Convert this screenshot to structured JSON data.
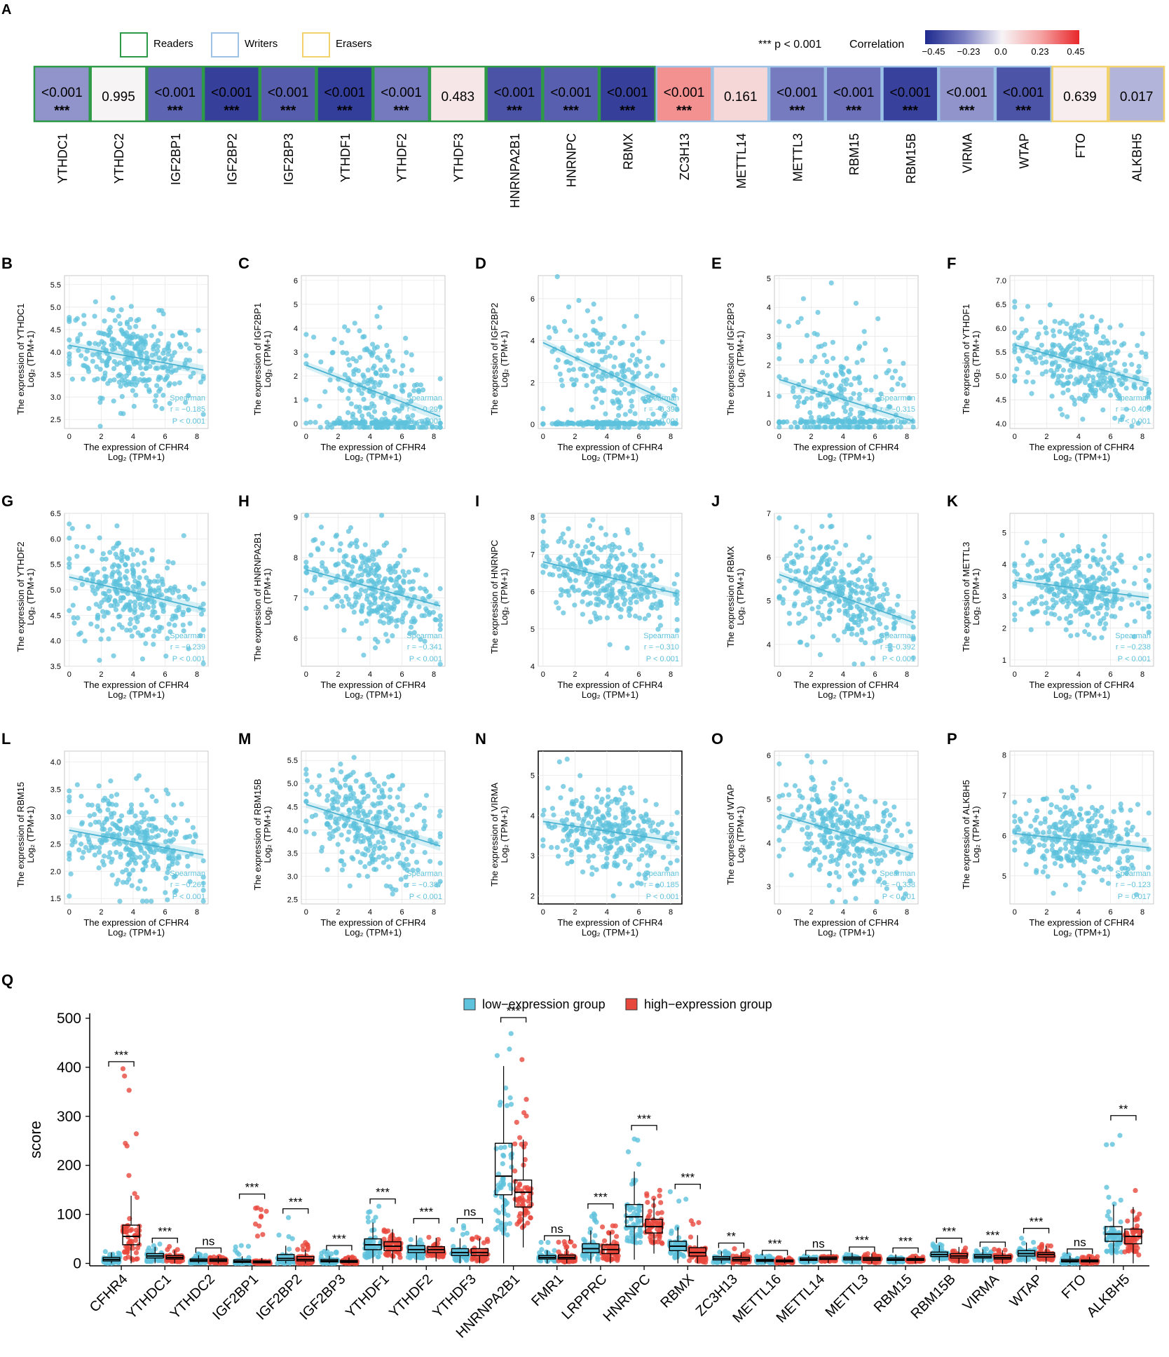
{
  "panel_a": {
    "letter": "A",
    "legend_items": [
      {
        "label": "Readers",
        "color": "#2e9a47"
      },
      {
        "label": "Writers",
        "color": "#9cc3e6"
      },
      {
        "label": "Erasers",
        "color": "#f2d26a"
      }
    ],
    "sig_note": "*** p < 0.001",
    "correlation_label": "Correlation",
    "colorbar_ticks": [
      "−0.45",
      "−0.23",
      "0.0",
      "0.23",
      "0.45"
    ],
    "colorbar_colors": [
      "#1e2a8e",
      "#7b7fc2",
      "#f7f4f6",
      "#f5a3a3",
      "#e8262a"
    ],
    "cells": [
      {
        "gene": "YTHDC1",
        "p": "<0.001",
        "stars": "***",
        "r": -0.185,
        "group": "Readers"
      },
      {
        "gene": "YTHDC2",
        "p": "0.995",
        "stars": "",
        "r": 0.0,
        "group": "Readers"
      },
      {
        "gene": "IGF2BP1",
        "p": "<0.001",
        "stars": "***",
        "r": -0.297,
        "group": "Readers"
      },
      {
        "gene": "IGF2BP2",
        "p": "<0.001",
        "stars": "***",
        "r": -0.393,
        "group": "Readers"
      },
      {
        "gene": "IGF2BP3",
        "p": "<0.001",
        "stars": "***",
        "r": -0.315,
        "group": "Readers"
      },
      {
        "gene": "YTHDF1",
        "p": "<0.001",
        "stars": "***",
        "r": -0.4,
        "group": "Readers"
      },
      {
        "gene": "YTHDF2",
        "p": "<0.001",
        "stars": "***",
        "r": -0.239,
        "group": "Readers"
      },
      {
        "gene": "YTHDF3",
        "p": "0.483",
        "stars": "",
        "r": 0.04,
        "group": "Readers"
      },
      {
        "gene": "HNRNPA2B1",
        "p": "<0.001",
        "stars": "***",
        "r": -0.341,
        "group": "Readers"
      },
      {
        "gene": "HNRNPC",
        "p": "<0.001",
        "stars": "***",
        "r": -0.31,
        "group": "Readers"
      },
      {
        "gene": "RBMX",
        "p": "<0.001",
        "stars": "***",
        "r": -0.392,
        "group": "Readers"
      },
      {
        "gene": "ZC3H13",
        "p": "<0.001",
        "stars": "***",
        "r": 0.26,
        "group": "Writers"
      },
      {
        "gene": "METTL14",
        "p": "0.161",
        "stars": "",
        "r": 0.08,
        "group": "Writers"
      },
      {
        "gene": "METTL3",
        "p": "<0.001",
        "stars": "***",
        "r": -0.238,
        "group": "Writers"
      },
      {
        "gene": "RBM15",
        "p": "<0.001",
        "stars": "***",
        "r": -0.261,
        "group": "Writers"
      },
      {
        "gene": "RBM15B",
        "p": "<0.001",
        "stars": "***",
        "r": -0.387,
        "group": "Writers"
      },
      {
        "gene": "VIRMA",
        "p": "<0.001",
        "stars": "***",
        "r": -0.185,
        "group": "Writers"
      },
      {
        "gene": "WTAP",
        "p": "<0.001",
        "stars": "***",
        "r": -0.338,
        "group": "Writers"
      },
      {
        "gene": "FTO",
        "p": "0.639",
        "stars": "",
        "r": 0.02,
        "group": "Erasers"
      },
      {
        "gene": "ALKBH5",
        "p": "0.017",
        "stars": "",
        "r": -0.123,
        "group": "Erasers"
      }
    ]
  },
  "scatter_common": {
    "xlabel": "The expression of CFHR4",
    "xlabel_unit": "Log₂ (TPM+1)",
    "ylabel_prefix": "The expression of ",
    "ylabel_unit": "Log₂ (TPM+1)",
    "method": "Spearman",
    "x_ticks": [
      "0",
      "2",
      "4",
      "6",
      "8"
    ]
  },
  "chart_data": [
    {
      "type": "scatter",
      "letter": "B",
      "gene": "YTHDC1",
      "r_text": "r = −0.185",
      "p_text": "P < 0.001",
      "ylim": [
        2.3,
        5.7
      ],
      "yticks": [
        "2.5",
        "3.0",
        "3.5",
        "4.0",
        "4.5",
        "5.0",
        "5.5"
      ],
      "ytick_vals": [
        2.5,
        3.0,
        3.5,
        4.0,
        4.5,
        5.0,
        5.5
      ],
      "fit": [
        4.15,
        3.6
      ],
      "ymean": 3.9,
      "ysd": 0.55,
      "zero_cluster": false
    },
    {
      "type": "scatter",
      "letter": "C",
      "gene": "IGF2BP1",
      "r_text": "r = −0.297",
      "p_text": "P < 0.001",
      "ylim": [
        -0.2,
        6.2
      ],
      "yticks": [
        "0",
        "1",
        "2",
        "3",
        "4",
        "5",
        "6"
      ],
      "ytick_vals": [
        0,
        1,
        2,
        3,
        4,
        5,
        6
      ],
      "fit": [
        2.45,
        0.3
      ],
      "ymean": 2.0,
      "ysd": 1.6,
      "zero_cluster": true
    },
    {
      "type": "scatter",
      "letter": "D",
      "gene": "IGF2BP2",
      "r_text": "r = −0.393",
      "p_text": "P < 0.001",
      "ylim": [
        -0.2,
        7.1
      ],
      "yticks": [
        "0",
        "2",
        "4",
        "6"
      ],
      "ytick_vals": [
        0,
        2,
        4,
        6
      ],
      "fit": [
        3.9,
        0.9
      ],
      "ymean": 2.8,
      "ysd": 1.8,
      "zero_cluster": true
    },
    {
      "type": "scatter",
      "letter": "E",
      "gene": "IGF2BP3",
      "r_text": "r = −0.315",
      "p_text": "P < 0.001",
      "ylim": [
        -0.2,
        5.1
      ],
      "yticks": [
        "0",
        "1",
        "2",
        "3",
        "4",
        "5"
      ],
      "ytick_vals": [
        0,
        1,
        2,
        3,
        4,
        5
      ],
      "fit": [
        1.5,
        0.05
      ],
      "ymean": 1.2,
      "ysd": 1.3,
      "zero_cluster": true
    },
    {
      "type": "scatter",
      "letter": "F",
      "gene": "YTHDF1",
      "r_text": "r = −0.400",
      "p_text": "P < 0.001",
      "ylim": [
        3.9,
        7.1
      ],
      "yticks": [
        "4.0",
        "4.5",
        "5.0",
        "5.5",
        "6.0",
        "6.5",
        "7.0"
      ],
      "ytick_vals": [
        4.0,
        4.5,
        5.0,
        5.5,
        6.0,
        6.5,
        7.0
      ],
      "fit": [
        5.65,
        4.85
      ],
      "ymean": 5.35,
      "ysd": 0.55,
      "zero_cluster": false
    },
    {
      "type": "scatter",
      "letter": "G",
      "gene": "YTHDF2",
      "r_text": "r = −0.239",
      "p_text": "P < 0.001",
      "ylim": [
        3.5,
        6.5
      ],
      "yticks": [
        "3.5",
        "4.0",
        "4.5",
        "5.0",
        "5.5",
        "6.0",
        "6.5"
      ],
      "ytick_vals": [
        3.5,
        4.0,
        4.5,
        5.0,
        5.5,
        6.0,
        6.5
      ],
      "fit": [
        5.25,
        4.62
      ],
      "ymean": 4.95,
      "ysd": 0.55,
      "zero_cluster": false
    },
    {
      "type": "scatter",
      "letter": "H",
      "gene": "HNRNPA2B1",
      "r_text": "r = −0.341",
      "p_text": "P < 0.001",
      "ylim": [
        5.3,
        9.1
      ],
      "yticks": [
        "6",
        "7",
        "8",
        "9"
      ],
      "ytick_vals": [
        6,
        7,
        8,
        9
      ],
      "fit": [
        7.7,
        6.8
      ],
      "ymean": 7.3,
      "ysd": 0.65,
      "zero_cluster": false
    },
    {
      "type": "scatter",
      "letter": "I",
      "gene": "HNRNPC",
      "r_text": "r = −0.310",
      "p_text": "P < 0.001",
      "ylim": [
        4.0,
        8.1
      ],
      "yticks": [
        "4",
        "5",
        "6",
        "7",
        "8"
      ],
      "ytick_vals": [
        4,
        5,
        6,
        7,
        8
      ],
      "fit": [
        6.8,
        5.95
      ],
      "ymean": 6.4,
      "ysd": 0.65,
      "zero_cluster": false
    },
    {
      "type": "scatter",
      "letter": "J",
      "gene": "RBMX",
      "r_text": "r = −0.392",
      "p_text": "P < 0.001",
      "ylim": [
        3.5,
        7.0
      ],
      "yticks": [
        "4",
        "5",
        "6",
        "7"
      ],
      "ytick_vals": [
        4,
        5,
        6,
        7
      ],
      "fit": [
        5.6,
        4.5
      ],
      "ymean": 5.05,
      "ysd": 0.65,
      "zero_cluster": false
    },
    {
      "type": "scatter",
      "letter": "K",
      "gene": "METTL3",
      "r_text": "r = −0.238",
      "p_text": "P < 0.001",
      "ylim": [
        0.8,
        5.6
      ],
      "yticks": [
        "1",
        "2",
        "3",
        "4",
        "5"
      ],
      "ytick_vals": [
        1,
        2,
        3,
        4,
        5
      ],
      "fit": [
        3.5,
        2.95
      ],
      "ymean": 3.2,
      "ysd": 0.7,
      "zero_cluster": false
    },
    {
      "type": "scatter",
      "letter": "L",
      "gene": "RBM15",
      "r_text": "r = −0.261",
      "p_text": "P < 0.001",
      "ylim": [
        1.4,
        4.2
      ],
      "yticks": [
        "1.5",
        "2.0",
        "2.5",
        "3.0",
        "3.5",
        "4.0"
      ],
      "ytick_vals": [
        1.5,
        2.0,
        2.5,
        3.0,
        3.5,
        4.0
      ],
      "fit": [
        2.75,
        2.3
      ],
      "ymean": 2.55,
      "ysd": 0.5,
      "zero_cluster": false
    },
    {
      "type": "scatter",
      "letter": "M",
      "gene": "RBM15B",
      "r_text": "r = −0.387",
      "p_text": "P < 0.001",
      "ylim": [
        2.4,
        5.7
      ],
      "yticks": [
        "2.5",
        "3.0",
        "3.5",
        "4.0",
        "4.5",
        "5.0",
        "5.5"
      ],
      "ytick_vals": [
        2.5,
        3.0,
        3.5,
        4.0,
        4.5,
        5.0,
        5.5
      ],
      "fit": [
        4.55,
        3.65
      ],
      "ymean": 4.1,
      "ysd": 0.6,
      "zero_cluster": false
    },
    {
      "type": "scatter",
      "letter": "N",
      "gene": "VIRMA",
      "r_text": "r = −0.185",
      "p_text": "P < 0.001",
      "ylim": [
        1.8,
        5.6
      ],
      "yticks": [
        "2",
        "3",
        "4",
        "5"
      ],
      "ytick_vals": [
        2,
        3,
        4,
        5
      ],
      "fit": [
        3.85,
        3.35
      ],
      "ymean": 3.6,
      "ysd": 0.6,
      "zero_cluster": false
    },
    {
      "type": "scatter",
      "letter": "O",
      "gene": "WTAP",
      "r_text": "r = −0.338",
      "p_text": "P < 0.001",
      "ylim": [
        2.6,
        6.1
      ],
      "yticks": [
        "3",
        "4",
        "5",
        "6"
      ],
      "ytick_vals": [
        3,
        4,
        5,
        6
      ],
      "fit": [
        4.65,
        3.75
      ],
      "ymean": 4.2,
      "ysd": 0.6,
      "zero_cluster": false
    },
    {
      "type": "scatter",
      "letter": "P",
      "gene": "ALKBH5",
      "r_text": "r = −0.123",
      "p_text": "P = 0.017",
      "ylim": [
        4.3,
        8.1
      ],
      "yticks": [
        "5",
        "6",
        "7",
        "8"
      ],
      "ytick_vals": [
        5,
        6,
        7,
        8
      ],
      "fit": [
        6.05,
        5.7
      ],
      "ymean": 5.9,
      "ysd": 0.55,
      "zero_cluster": false
    },
    {
      "type": "box",
      "letter": "Q",
      "ylabel": "score",
      "ylim": [
        -5,
        510
      ],
      "yticks": [
        "0",
        "100",
        "200",
        "300",
        "400",
        "500"
      ],
      "ytick_vals": [
        0,
        100,
        200,
        300,
        400,
        500
      ],
      "legend": [
        {
          "label": "low−expression group",
          "color": "#5ec2dc"
        },
        {
          "label": "high−expression group",
          "color": "#e8473c"
        }
      ],
      "categories": [
        "CFHR4",
        "YTHDC1",
        "YTHDC2",
        "IGF2BP1",
        "IGF2BP2",
        "IGF2BP3",
        "YTHDF1",
        "YTHDF2",
        "YTHDF3",
        "HNRNPA2B1",
        "FMR1",
        "LRPPRC",
        "HNRNPC",
        "RBMX",
        "ZC3H13",
        "METTL16",
        "METTL14",
        "METTL3",
        "RBM15",
        "RBM15B",
        "VIRMA",
        "WTAP",
        "FTO",
        "ALKBH5"
      ],
      "significance": [
        "***",
        "***",
        "ns",
        "***",
        "***",
        "***",
        "***",
        "***",
        "ns",
        "***",
        "ns",
        "***",
        "***",
        "***",
        "**",
        "***",
        "ns",
        "***",
        "***",
        "***",
        "***",
        "***",
        "ns",
        "**"
      ],
      "series": [
        {
          "name": "low−expression group",
          "medians": [
            8,
            15,
            6,
            4,
            10,
            5,
            38,
            28,
            22,
            178,
            12,
            30,
            95,
            35,
            10,
            6,
            8,
            10,
            8,
            18,
            14,
            20,
            5,
            60
          ],
          "q1": [
            5,
            11,
            4,
            2,
            6,
            3,
            28,
            22,
            16,
            140,
            9,
            22,
            75,
            26,
            7,
            4,
            6,
            7,
            6,
            14,
            11,
            15,
            3,
            45
          ],
          "q3": [
            12,
            20,
            9,
            7,
            18,
            8,
            50,
            36,
            30,
            245,
            16,
            40,
            120,
            45,
            14,
            8,
            11,
            13,
            11,
            23,
            18,
            26,
            8,
            75
          ],
          "max": [
            25,
            40,
            20,
            40,
            100,
            25,
            120,
            80,
            80,
            490,
            45,
            110,
            270,
            150,
            25,
            15,
            15,
            22,
            20,
            40,
            32,
            60,
            18,
            290
          ]
        },
        {
          "name": "high−expression group",
          "medians": [
            55,
            12,
            6,
            3,
            8,
            4,
            35,
            28,
            22,
            145,
            12,
            28,
            75,
            22,
            8,
            5,
            10,
            9,
            8,
            15,
            12,
            18,
            5,
            55
          ],
          "q1": [
            38,
            9,
            4,
            1,
            5,
            2,
            26,
            22,
            16,
            115,
            9,
            20,
            62,
            15,
            5,
            3,
            8,
            6,
            6,
            11,
            9,
            13,
            3,
            40
          ],
          "q3": [
            78,
            16,
            9,
            5,
            14,
            6,
            44,
            34,
            30,
            170,
            17,
            38,
            90,
            32,
            12,
            7,
            13,
            12,
            10,
            20,
            16,
            22,
            7,
            70
          ],
          "max": [
            400,
            35,
            15,
            130,
            50,
            15,
            70,
            60,
            60,
            440,
            45,
            80,
            150,
            100,
            30,
            12,
            14,
            20,
            15,
            35,
            30,
            40,
            15,
            150
          ]
        }
      ]
    }
  ]
}
